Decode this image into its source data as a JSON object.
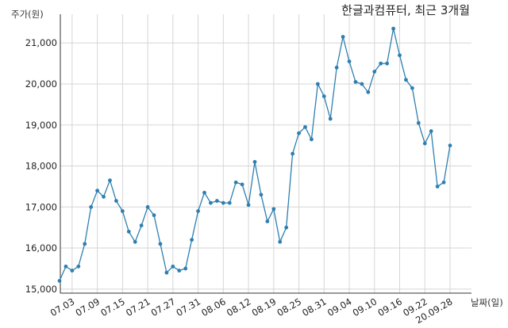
{
  "chart_data": {
    "type": "line",
    "title": "한글과컴퓨터, 최근 3개월",
    "ylabel": "주가(원)",
    "xlabel": "날짜(일)",
    "ylim": [
      14900,
      21700
    ],
    "grid": true,
    "line_color": "#2e7fb0",
    "yticks": [
      15000,
      16000,
      17000,
      18000,
      19000,
      20000,
      21000
    ],
    "ytick_labels": [
      "15,000",
      "16,000",
      "17,000",
      "18,000",
      "19,000",
      "20,000",
      "21,000"
    ],
    "xtick_labels": [
      "07.03",
      "07.09",
      "07.15",
      "07.21",
      "07.27",
      "07.31",
      "08.06",
      "08.12",
      "08.19",
      "08.25",
      "08.31",
      "09.04",
      "09.10",
      "09.16",
      "09.22",
      "20.09.28"
    ],
    "xtick_index": [
      2,
      6,
      10,
      14,
      18,
      22,
      26,
      30,
      34,
      38,
      42,
      46,
      50,
      54,
      58,
      62
    ],
    "values": [
      15200,
      15550,
      15450,
      15550,
      16100,
      17000,
      17400,
      17250,
      17650,
      17150,
      16900,
      16400,
      16150,
      16550,
      17000,
      16800,
      16100,
      15400,
      15550,
      15450,
      15500,
      16200,
      16900,
      17350,
      17100,
      17150,
      17100,
      17100,
      17600,
      17550,
      17050,
      18100,
      17300,
      16650,
      16950,
      16150,
      16500,
      18300,
      18800,
      18950,
      18650,
      20000,
      19700,
      19150,
      20400,
      21150,
      20550,
      20050,
      20000,
      19800,
      20300,
      20500,
      20500,
      21350,
      20700,
      20100,
      19900,
      19050,
      18550,
      18850,
      17500,
      17600,
      18500
    ]
  }
}
